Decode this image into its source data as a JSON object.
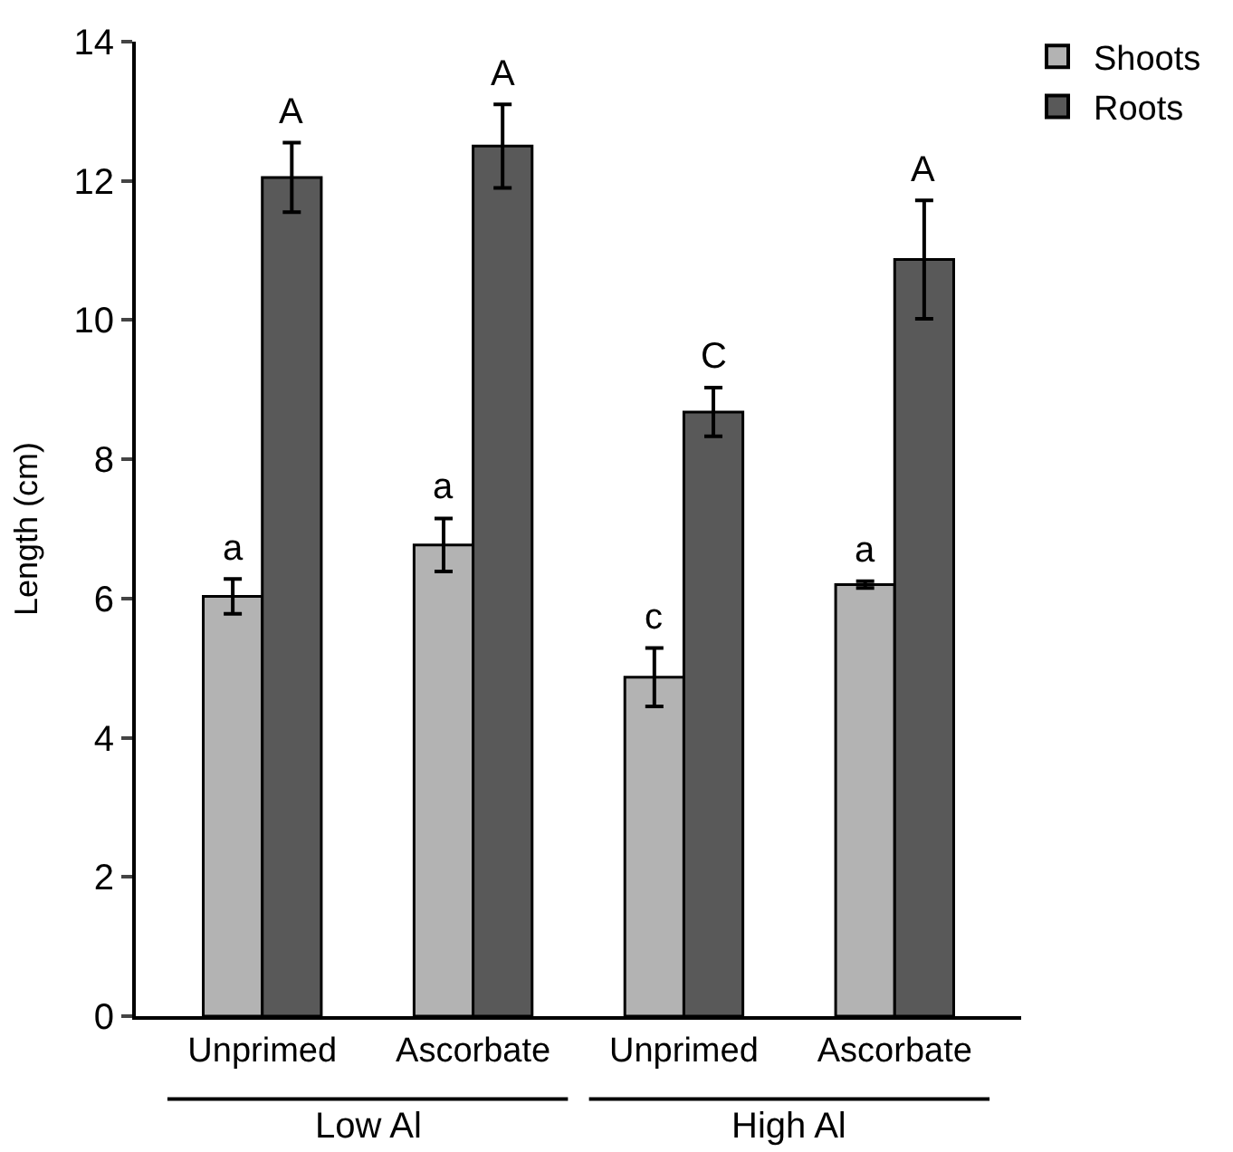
{
  "chart_data": {
    "type": "bar",
    "ylabel": "Length (cm)",
    "categories": [
      "Unprimed",
      "Ascorbate",
      "Unprimed",
      "Ascorbate"
    ],
    "series": [
      {
        "name": "Shoots",
        "color": "#b3b3b3",
        "values": [
          6.03,
          6.77,
          4.87,
          6.2
        ],
        "errors": [
          0.25,
          0.38,
          0.42,
          0.05
        ],
        "value_labels": [
          "a",
          "a",
          "c",
          "a"
        ]
      },
      {
        "name": "Roots",
        "color": "#595959",
        "values": [
          12.05,
          12.5,
          8.68,
          10.87
        ],
        "errors": [
          0.5,
          0.6,
          0.35,
          0.85
        ],
        "value_labels": [
          "A",
          "A",
          "C",
          "A"
        ]
      }
    ],
    "annotations": [
      "Low Al",
      "High Al"
    ],
    "ylim": [
      0,
      14
    ],
    "yticks": [
      0,
      2,
      4,
      6,
      8,
      10,
      12,
      14
    ],
    "legend": "top right"
  }
}
